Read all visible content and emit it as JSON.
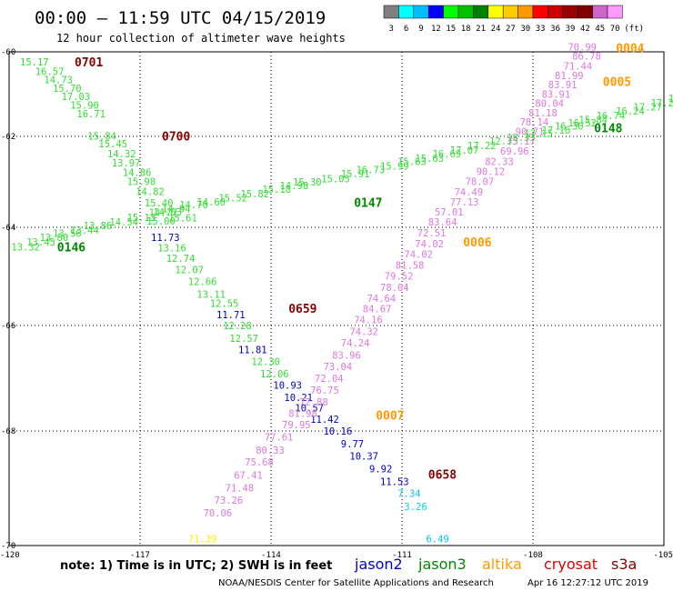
{
  "header": {
    "title": "00:00 – 11:59 UTC 04/15/2019",
    "subtitle": "12 hour collection of altimeter wave heights"
  },
  "legend": {
    "colors": [
      "#808080",
      "#00ffff",
      "#00bfff",
      "#0000ff",
      "#00ff00",
      "#00c000",
      "#008000",
      "#ffff00",
      "#ffcc00",
      "#ff9900",
      "#ff0000",
      "#cc0000",
      "#990000",
      "#800000",
      "#cc66cc",
      "#ff99ff"
    ],
    "labels": [
      "3",
      "6",
      "9",
      "12",
      "15",
      "18",
      "21",
      "24",
      "27",
      "30",
      "33",
      "36",
      "39",
      "42",
      "45",
      "70"
    ],
    "unit": "(ft)"
  },
  "axes": {
    "y_labels": [
      "-60",
      "-62",
      "-64",
      "-66",
      "-68",
      "-70"
    ],
    "x_labels": [
      "-120",
      "-117",
      "-114",
      "-111",
      "-108",
      "-105"
    ]
  },
  "footer": {
    "note": "note: 1) Time is in UTC; 2) SWH is in feet",
    "satellites": [
      {
        "name": "jason2",
        "color": "#0000cc"
      },
      {
        "name": "jason3",
        "color": "#008800"
      },
      {
        "name": "altika",
        "color": "#ff9900"
      },
      {
        "name": "cryosat",
        "color": "#dd0000"
      },
      {
        "name": "s3a",
        "color": "#880000"
      }
    ],
    "credit": "NOAA/NESDIS Center for Satellite Applications and Research",
    "timestamp": "Apr 16 12:27:12 UTC 2019"
  },
  "chart_data": {
    "type": "scatter",
    "title": "00:00 – 11:59 UTC 04/15/2019",
    "subtitle": "12 hour collection of altimeter wave heights",
    "xlim": [
      -120,
      -105
    ],
    "ylim": [
      -70,
      -60
    ],
    "grid": true,
    "pass_labels": [
      {
        "text": "0701",
        "lon": -118.5,
        "lat": -60.24,
        "color": "#880000"
      },
      {
        "text": "0700",
        "lon": -116.5,
        "lat": -61.99,
        "color": "#880000"
      },
      {
        "text": "0659",
        "lon": -113.6,
        "lat": -65.65,
        "color": "#880000"
      },
      {
        "text": "0658",
        "lon": -110.4,
        "lat": -68.75,
        "color": "#880000"
      },
      {
        "text": "0146",
        "lon": -118.9,
        "lat": -64.4,
        "color": "#008800"
      },
      {
        "text": "0147",
        "lon": -112.1,
        "lat": -63.45,
        "color": "#008800"
      },
      {
        "text": "0148",
        "lon": -106.6,
        "lat": -61.8,
        "color": "#008800"
      },
      {
        "text": "0004",
        "lon": -106.1,
        "lat": -59.9,
        "color": "#ff9900"
      },
      {
        "text": "0005",
        "lon": -106.4,
        "lat": -60.7,
        "color": "#ff9900"
      },
      {
        "text": "0006",
        "lon": -109.6,
        "lat": -64.3,
        "color": "#ff9900"
      },
      {
        "text": "0007",
        "lon": -111.6,
        "lat": -67.7,
        "color": "#ff9900"
      }
    ],
    "points": [
      {
        "lon": -119.75,
        "lat": -60.24,
        "v": "15.17"
      },
      {
        "lon": -119.4,
        "lat": -60.46,
        "v": "16.57"
      },
      {
        "lon": -119.2,
        "lat": -60.66,
        "v": "14.73"
      },
      {
        "lon": -119.0,
        "lat": -60.86,
        "v": "15.70"
      },
      {
        "lon": -118.8,
        "lat": -61.05,
        "v": "17.03"
      },
      {
        "lon": -118.6,
        "lat": -61.26,
        "v": "15.90"
      },
      {
        "lon": -118.45,
        "lat": -61.46,
        "v": "16.71"
      },
      {
        "lon": -118.2,
        "lat": -61.99,
        "v": "15.84"
      },
      {
        "lon": -117.95,
        "lat": -62.16,
        "v": "15.45"
      },
      {
        "lon": -117.75,
        "lat": -62.38,
        "v": "14.32"
      },
      {
        "lon": -117.65,
        "lat": -62.58,
        "v": "13.97"
      },
      {
        "lon": -117.4,
        "lat": -62.79,
        "v": "14.86"
      },
      {
        "lon": -117.3,
        "lat": -62.99,
        "v": "15.98"
      },
      {
        "lon": -117.1,
        "lat": -63.21,
        "v": "14.82"
      },
      {
        "lon": -116.9,
        "lat": -63.46,
        "v": "15.40"
      },
      {
        "lon": -116.7,
        "lat": -63.66,
        "v": "14.63"
      },
      {
        "lon": -116.85,
        "lat": -63.86,
        "v": "15.00"
      },
      {
        "lon": -116.35,
        "lat": -63.79,
        "v": "15.61"
      },
      {
        "lon": -116.75,
        "lat": -64.2,
        "v": "11.73",
        "c": "#0000cc"
      },
      {
        "lon": -116.6,
        "lat": -64.42,
        "v": "13.16"
      },
      {
        "lon": -116.4,
        "lat": -64.63,
        "v": "12.74"
      },
      {
        "lon": -116.2,
        "lat": -64.86,
        "v": "12.07"
      },
      {
        "lon": -115.9,
        "lat": -65.1,
        "v": "12.66"
      },
      {
        "lon": -115.7,
        "lat": -65.36,
        "v": "13.11"
      },
      {
        "lon": -115.4,
        "lat": -65.55,
        "v": "12.55"
      },
      {
        "lon": -115.25,
        "lat": -65.78,
        "v": "11.71",
        "c": "#0000cc"
      },
      {
        "lon": -115.1,
        "lat": -66.0,
        "v": "12.28"
      },
      {
        "lon": -114.95,
        "lat": -66.24,
        "v": "12.57"
      },
      {
        "lon": -114.75,
        "lat": -66.46,
        "v": "11.81",
        "c": "#0000cc"
      },
      {
        "lon": -114.45,
        "lat": -66.68,
        "v": "12.30"
      },
      {
        "lon": -114.25,
        "lat": -66.91,
        "v": "12.06"
      },
      {
        "lon": -113.95,
        "lat": -67.13,
        "v": "10.93",
        "c": "#0000cc"
      },
      {
        "lon": -113.7,
        "lat": -67.36,
        "v": "10.21",
        "c": "#0000cc"
      },
      {
        "lon": -113.45,
        "lat": -67.56,
        "v": "10.57",
        "c": "#0000cc"
      },
      {
        "lon": -113.1,
        "lat": -67.78,
        "v": "11.42",
        "c": "#0000cc"
      },
      {
        "lon": -112.8,
        "lat": -68.0,
        "v": "10.16",
        "c": "#0000cc"
      },
      {
        "lon": -112.4,
        "lat": -68.22,
        "v": "9.77",
        "c": "#0000cc"
      },
      {
        "lon": -112.2,
        "lat": -68.44,
        "v": "10.37",
        "c": "#0000cc"
      },
      {
        "lon": -111.75,
        "lat": -68.66,
        "v": "9.92",
        "c": "#0000cc"
      },
      {
        "lon": -111.5,
        "lat": -68.88,
        "v": "11.53",
        "c": "#0000cc"
      },
      {
        "lon": -111.1,
        "lat": -69.09,
        "v": "7.34",
        "c": "#00bfff"
      },
      {
        "lon": -110.95,
        "lat": -69.32,
        "v": "3.26",
        "c": "#00dddd"
      },
      {
        "lon": -110.45,
        "lat": -69.88,
        "v": "6.49",
        "c": "#00bfff"
      },
      {
        "lon": -119.95,
        "lat": -64.4,
        "v": "13.32"
      },
      {
        "lon": -119.6,
        "lat": -64.3,
        "v": "13.45"
      },
      {
        "lon": -119.3,
        "lat": -64.2,
        "v": "13.80"
      },
      {
        "lon": -119.0,
        "lat": -64.12,
        "v": "13.56"
      },
      {
        "lon": -118.6,
        "lat": -64.06,
        "v": "13.44"
      },
      {
        "lon": -118.3,
        "lat": -63.96,
        "v": "13.86"
      },
      {
        "lon": -117.7,
        "lat": -63.88,
        "v": "14.54"
      },
      {
        "lon": -117.3,
        "lat": -63.78,
        "v": "15.13"
      },
      {
        "lon": -116.8,
        "lat": -63.67,
        "v": "14.77"
      },
      {
        "lon": -116.5,
        "lat": -63.59,
        "v": "14.94"
      },
      {
        "lon": -116.1,
        "lat": -63.5,
        "v": "14.70"
      },
      {
        "lon": -115.7,
        "lat": -63.44,
        "v": "14.60"
      },
      {
        "lon": -115.2,
        "lat": -63.35,
        "v": "15.52"
      },
      {
        "lon": -114.7,
        "lat": -63.26,
        "v": "15.82"
      },
      {
        "lon": -114.2,
        "lat": -63.16,
        "v": "15.18"
      },
      {
        "lon": -113.8,
        "lat": -63.08,
        "v": "14.98"
      },
      {
        "lon": -113.5,
        "lat": -63.0,
        "v": "15.30"
      },
      {
        "lon": -112.85,
        "lat": -62.93,
        "v": "15.05"
      },
      {
        "lon": -112.4,
        "lat": -62.82,
        "v": "15.91"
      },
      {
        "lon": -112.05,
        "lat": -62.73,
        "v": "16.73"
      },
      {
        "lon": -111.5,
        "lat": -62.65,
        "v": "15.99"
      },
      {
        "lon": -111.1,
        "lat": -62.55,
        "v": "15.63"
      },
      {
        "lon": -110.7,
        "lat": -62.48,
        "v": "15.63"
      },
      {
        "lon": -110.3,
        "lat": -62.38,
        "v": "16.69"
      },
      {
        "lon": -109.9,
        "lat": -62.3,
        "v": "17.07"
      },
      {
        "lon": -109.5,
        "lat": -62.2,
        "v": "17.22"
      },
      {
        "lon": -109.0,
        "lat": -62.1,
        "v": "12.33"
      },
      {
        "lon": -108.6,
        "lat": -62.02,
        "v": "18.33"
      },
      {
        "lon": -108.2,
        "lat": -61.93,
        "v": "17.15"
      },
      {
        "lon": -107.8,
        "lat": -61.85,
        "v": "17.16"
      },
      {
        "lon": -107.5,
        "lat": -61.75,
        "v": "16.30"
      },
      {
        "lon": -107.2,
        "lat": -61.68,
        "v": "16.52"
      },
      {
        "lon": -106.95,
        "lat": -61.6,
        "v": "15.84"
      },
      {
        "lon": -106.55,
        "lat": -61.5,
        "v": "16.74"
      },
      {
        "lon": -106.1,
        "lat": -61.4,
        "v": "16.24"
      },
      {
        "lon": -105.7,
        "lat": -61.3,
        "v": "17.27"
      },
      {
        "lon": -105.3,
        "lat": -61.2,
        "v": "17.23"
      },
      {
        "lon": -104.9,
        "lat": -61.1,
        "v": "16.32"
      },
      {
        "lon": -104.5,
        "lat": -61.0,
        "v": "16.89"
      },
      {
        "lon": -104.0,
        "lat": -60.9,
        "v": "15.18"
      },
      {
        "lon": -107.2,
        "lat": -59.88,
        "v": "70.99",
        "c": "#dd77dd"
      },
      {
        "lon": -107.1,
        "lat": -60.1,
        "v": "86.78",
        "c": "#dd77dd"
      },
      {
        "lon": -107.3,
        "lat": -60.33,
        "v": "71.44",
        "c": "#dd77dd"
      },
      {
        "lon": -107.5,
        "lat": -60.56,
        "v": "81.99",
        "c": "#dd77dd"
      },
      {
        "lon": -107.65,
        "lat": -60.77,
        "v": "83.91",
        "c": "#dd77dd"
      },
      {
        "lon": -107.8,
        "lat": -61.0,
        "v": "83.91",
        "c": "#dd77dd"
      },
      {
        "lon": -107.95,
        "lat": -61.22,
        "v": "80.04",
        "c": "#dd77dd"
      },
      {
        "lon": -108.1,
        "lat": -61.44,
        "v": "81.18",
        "c": "#dd77dd"
      },
      {
        "lon": -108.3,
        "lat": -61.66,
        "v": "78.14",
        "c": "#dd77dd"
      },
      {
        "lon": -108.4,
        "lat": -61.88,
        "v": "90.71",
        "c": "#dd77dd"
      },
      {
        "lon": -108.6,
        "lat": -62.1,
        "v": "75.17",
        "c": "#dd77dd"
      },
      {
        "lon": -108.75,
        "lat": -62.32,
        "v": "69.96",
        "c": "#dd77dd"
      },
      {
        "lon": -109.1,
        "lat": -62.55,
        "v": "82.33",
        "c": "#dd77dd"
      },
      {
        "lon": -109.3,
        "lat": -62.77,
        "v": "90.12",
        "c": "#dd77dd"
      },
      {
        "lon": -109.55,
        "lat": -62.99,
        "v": "78.07",
        "c": "#dd77dd"
      },
      {
        "lon": -109.8,
        "lat": -63.22,
        "v": "74.49",
        "c": "#dd77dd"
      },
      {
        "lon": -109.9,
        "lat": -63.44,
        "v": "77.13",
        "c": "#dd77dd"
      },
      {
        "lon": -110.25,
        "lat": -63.66,
        "v": "57.01",
        "c": "#dd77dd"
      },
      {
        "lon": -110.4,
        "lat": -63.88,
        "v": "83.64",
        "c": "#dd77dd"
      },
      {
        "lon": -110.65,
        "lat": -64.11,
        "v": "72.51",
        "c": "#dd77dd"
      },
      {
        "lon": -110.7,
        "lat": -64.33,
        "v": "74.02",
        "c": "#dd77dd"
      },
      {
        "lon": -110.95,
        "lat": -64.55,
        "v": "74.02",
        "c": "#dd77dd"
      },
      {
        "lon": -111.15,
        "lat": -64.77,
        "v": "81.58",
        "c": "#dd77dd"
      },
      {
        "lon": -111.4,
        "lat": -64.99,
        "v": "79.52",
        "c": "#dd77dd"
      },
      {
        "lon": -111.5,
        "lat": -65.22,
        "v": "78.04",
        "c": "#dd77dd"
      },
      {
        "lon": -111.8,
        "lat": -65.44,
        "v": "74.64",
        "c": "#dd77dd"
      },
      {
        "lon": -111.9,
        "lat": -65.66,
        "v": "84.67",
        "c": "#dd77dd"
      },
      {
        "lon": -112.1,
        "lat": -65.88,
        "v": "74.16",
        "c": "#dd77dd"
      },
      {
        "lon": -112.2,
        "lat": -66.11,
        "v": "74.32",
        "c": "#dd77dd"
      },
      {
        "lon": -112.4,
        "lat": -66.33,
        "v": "74.24",
        "c": "#dd77dd"
      },
      {
        "lon": -112.6,
        "lat": -66.56,
        "v": "83.96",
        "c": "#dd77dd"
      },
      {
        "lon": -112.8,
        "lat": -66.78,
        "v": "73.04",
        "c": "#dd77dd"
      },
      {
        "lon": -113.0,
        "lat": -67.0,
        "v": "72.04",
        "c": "#dd77dd"
      },
      {
        "lon": -113.1,
        "lat": -67.22,
        "v": "76.75",
        "c": "#dd77dd"
      },
      {
        "lon": -113.35,
        "lat": -67.45,
        "v": "72.88",
        "c": "#dd77dd"
      },
      {
        "lon": -113.6,
        "lat": -67.66,
        "v": "81.98",
        "c": "#dd77dd"
      },
      {
        "lon": -113.75,
        "lat": -67.88,
        "v": "79.95",
        "c": "#dd77dd"
      },
      {
        "lon": -114.15,
        "lat": -68.1,
        "v": "77.61",
        "c": "#dd77dd"
      },
      {
        "lon": -114.35,
        "lat": -68.33,
        "v": "80.33",
        "c": "#dd77dd"
      },
      {
        "lon": -114.6,
        "lat": -68.54,
        "v": "75.68",
        "c": "#dd77dd"
      },
      {
        "lon": -114.85,
        "lat": -68.77,
        "v": "67.41",
        "c": "#dd77dd"
      },
      {
        "lon": -115.05,
        "lat": -68.99,
        "v": "71.48",
        "c": "#dd77dd"
      },
      {
        "lon": -115.3,
        "lat": -69.21,
        "v": "73.26",
        "c": "#dd77dd"
      },
      {
        "lon": -115.55,
        "lat": -69.43,
        "v": "70.06",
        "c": "#dd77dd"
      },
      {
        "lon": -115.9,
        "lat": -69.88,
        "v": "71.39",
        "c": "#ffee00"
      }
    ]
  }
}
